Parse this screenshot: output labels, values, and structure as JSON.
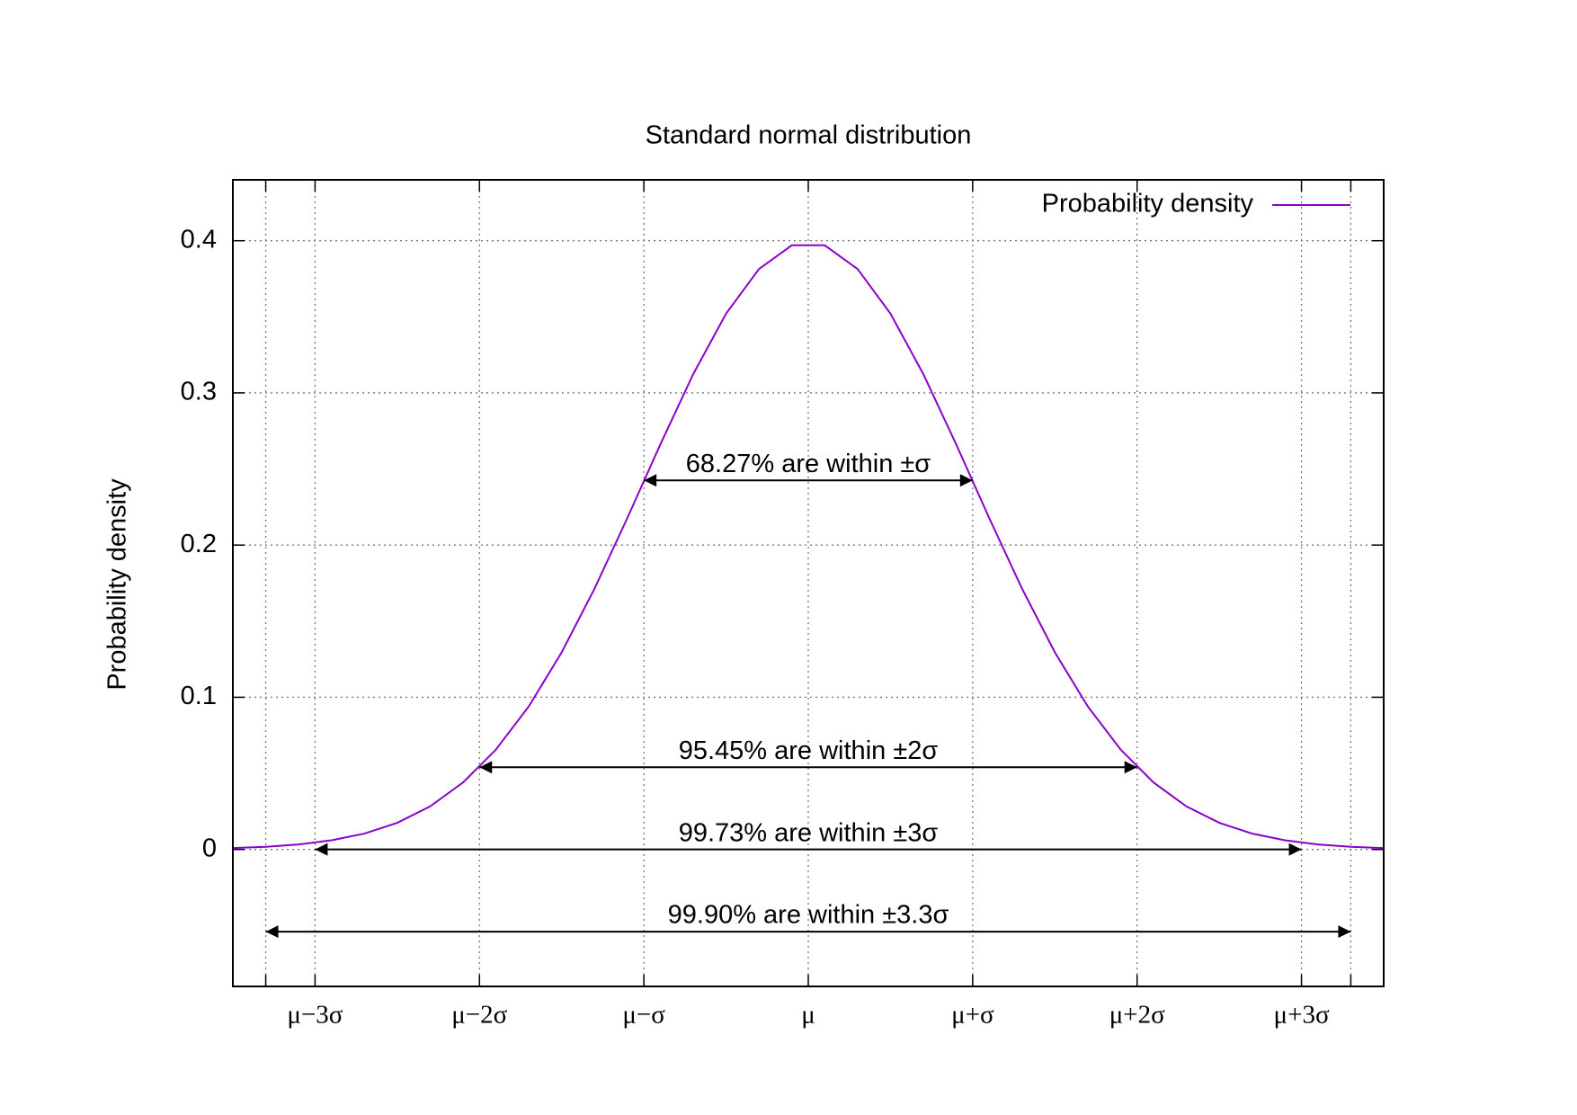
{
  "chart_data": {
    "type": "line",
    "title": "Standard normal distribution",
    "y_label": "Probability density",
    "x": [
      -3.5,
      -3.3,
      -3.1,
      -2.9,
      -2.7,
      -2.5,
      -2.3,
      -2.1,
      -1.9,
      -1.7,
      -1.5,
      -1.3,
      -1.1,
      -0.9,
      -0.7,
      -0.5,
      -0.3,
      -0.1,
      0.1,
      0.3,
      0.5,
      0.7,
      0.9,
      1.1,
      1.3,
      1.5,
      1.7,
      1.9,
      2.1,
      2.3,
      2.5,
      2.7,
      2.9,
      3.1,
      3.3,
      3.5
    ],
    "series": [
      {
        "name": "Probability density",
        "color": "#8b00c9",
        "values": [
          0.0009,
          0.0017,
          0.0033,
          0.006,
          0.0104,
          0.0175,
          0.0283,
          0.044,
          0.0656,
          0.094,
          0.1295,
          0.1714,
          0.2179,
          0.2661,
          0.3123,
          0.3521,
          0.3814,
          0.397,
          0.397,
          0.3814,
          0.3521,
          0.3123,
          0.2661,
          0.2179,
          0.1714,
          0.1295,
          0.094,
          0.0656,
          0.044,
          0.0283,
          0.0175,
          0.0104,
          0.006,
          0.0033,
          0.0017,
          0.0009
        ]
      }
    ],
    "xlim": [
      -3.5,
      3.5
    ],
    "ylim": [
      -0.09,
      0.44
    ],
    "xticks": [
      {
        "value": -3.3,
        "label": null
      },
      {
        "value": -3,
        "label": "μ−3σ"
      },
      {
        "value": -2,
        "label": "μ−2σ"
      },
      {
        "value": -1,
        "label": "μ−σ"
      },
      {
        "value": 0,
        "label": "μ"
      },
      {
        "value": 1,
        "label": "μ+σ"
      },
      {
        "value": 2,
        "label": "μ+2σ"
      },
      {
        "value": 3,
        "label": "μ+3σ"
      },
      {
        "value": 3.3,
        "label": null
      }
    ],
    "yticks": [
      0,
      0.1,
      0.2,
      0.3,
      0.4
    ],
    "grid": true,
    "legend": "top-right",
    "annotations": [
      {
        "text": "68.27% are within ±σ",
        "x": [
          -1,
          1
        ],
        "y": 0.2425
      },
      {
        "text": "95.45% are within ±2σ",
        "x": [
          -2,
          2
        ],
        "y": 0.054
      },
      {
        "text": "99.73% are within ±3σ",
        "x": [
          -3,
          3
        ],
        "y": 0
      },
      {
        "text": "99.90% are within ±3.3σ",
        "x": [
          -3.3,
          3.3
        ],
        "y": -0.054
      }
    ]
  }
}
